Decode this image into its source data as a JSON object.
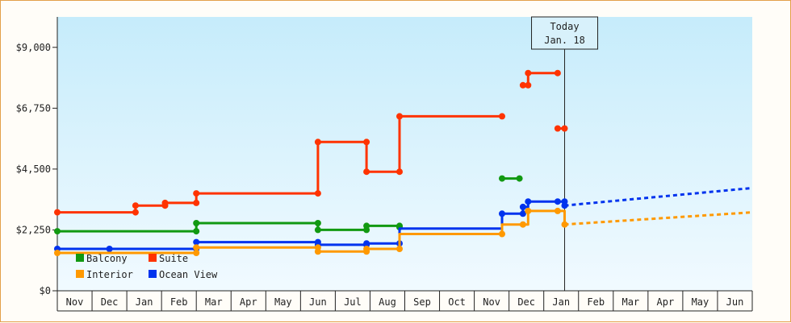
{
  "chart_data": {
    "type": "line",
    "step": true,
    "currency": "$",
    "yticks": [
      0,
      2250,
      4500,
      6750,
      9000
    ],
    "ytick_labels": [
      "$0",
      "$2,250",
      "$4,500",
      "$6,750",
      "$9,000"
    ],
    "ylim": [
      0,
      10125
    ],
    "months": [
      "Nov",
      "Dec",
      "Jan",
      "Feb",
      "Mar",
      "Apr",
      "May",
      "Jun",
      "Jul",
      "Aug",
      "Sep",
      "Oct",
      "Nov",
      "Dec",
      "Jan",
      "Feb",
      "Mar",
      "Apr",
      "May",
      "Jun"
    ],
    "today_label_line1": "Today",
    "today_label_line2": "Jan. 18",
    "today_x": 14.6,
    "grid": false,
    "legend_position": "bottom-left",
    "series": [
      {
        "name": "Suite",
        "color": "#ff3300",
        "segments": [
          [
            [
              0,
              2900
            ],
            [
              2.25,
              2900
            ],
            [
              2.25,
              3150
            ],
            [
              3.1,
              3150
            ],
            [
              3.1,
              3250
            ],
            [
              4.0,
              3250
            ],
            [
              4.0,
              3600
            ],
            [
              7.5,
              3600
            ],
            [
              7.5,
              5500
            ],
            [
              8.9,
              5500
            ],
            [
              8.9,
              4400
            ],
            [
              9.85,
              4400
            ],
            [
              9.85,
              6450
            ],
            [
              12.8,
              6450
            ]
          ],
          [
            [
              13.4,
              7600
            ],
            [
              13.55,
              7600
            ],
            [
              13.55,
              8050
            ],
            [
              14.4,
              8050
            ]
          ],
          [
            [
              14.4,
              6000
            ],
            [
              14.6,
              6000
            ]
          ]
        ],
        "markers": [
          [
            0,
            2900
          ],
          [
            2.25,
            2900
          ],
          [
            2.25,
            3150
          ],
          [
            3.1,
            3150
          ],
          [
            3.1,
            3250
          ],
          [
            4.0,
            3250
          ],
          [
            4.0,
            3600
          ],
          [
            7.5,
            3600
          ],
          [
            7.5,
            5500
          ],
          [
            8.9,
            5500
          ],
          [
            8.9,
            4400
          ],
          [
            9.85,
            4400
          ],
          [
            9.85,
            6450
          ],
          [
            12.8,
            6450
          ],
          [
            13.4,
            7600
          ],
          [
            13.55,
            7600
          ],
          [
            13.55,
            8050
          ],
          [
            14.4,
            8050
          ],
          [
            14.4,
            6000
          ],
          [
            14.6,
            6000
          ]
        ]
      },
      {
        "name": "Balcony",
        "color": "#119911",
        "segments": [
          [
            [
              0,
              2200
            ],
            [
              4.0,
              2200
            ],
            [
              4.0,
              2500
            ],
            [
              7.5,
              2500
            ],
            [
              7.5,
              2250
            ],
            [
              8.9,
              2250
            ],
            [
              8.9,
              2400
            ],
            [
              9.85,
              2400
            ],
            [
              9.85,
              2350
            ]
          ],
          [
            [
              12.8,
              4150
            ],
            [
              13.3,
              4150
            ]
          ]
        ],
        "markers": [
          [
            0,
            2200
          ],
          [
            4.0,
            2200
          ],
          [
            4.0,
            2500
          ],
          [
            7.5,
            2500
          ],
          [
            7.5,
            2250
          ],
          [
            8.9,
            2250
          ],
          [
            8.9,
            2400
          ],
          [
            9.85,
            2400
          ],
          [
            9.85,
            2350
          ],
          [
            12.8,
            4150
          ],
          [
            13.3,
            4150
          ]
        ]
      },
      {
        "name": "Ocean View",
        "color": "#0033ee",
        "segments": [
          [
            [
              0,
              1550
            ],
            [
              4.0,
              1550
            ],
            [
              4.0,
              1800
            ],
            [
              7.5,
              1800
            ],
            [
              7.5,
              1700
            ],
            [
              8.9,
              1700
            ],
            [
              8.9,
              1750
            ],
            [
              9.85,
              1750
            ],
            [
              9.85,
              2300
            ],
            [
              12.8,
              2300
            ],
            [
              12.8,
              2850
            ],
            [
              13.4,
              2850
            ],
            [
              13.4,
              3100
            ],
            [
              13.55,
              3100
            ],
            [
              13.55,
              3300
            ],
            [
              14.4,
              3300
            ],
            [
              14.6,
              3300
            ],
            [
              14.6,
              3150
            ]
          ]
        ],
        "markers": [
          [
            0,
            1550
          ],
          [
            1.5,
            1550
          ],
          [
            4.0,
            1550
          ],
          [
            4.0,
            1800
          ],
          [
            7.5,
            1800
          ],
          [
            7.5,
            1700
          ],
          [
            8.9,
            1700
          ],
          [
            8.9,
            1750
          ],
          [
            9.85,
            1750
          ],
          [
            12.8,
            2850
          ],
          [
            13.4,
            2850
          ],
          [
            13.4,
            3100
          ],
          [
            13.55,
            3300
          ],
          [
            14.4,
            3300
          ],
          [
            14.6,
            3300
          ],
          [
            14.6,
            3150
          ]
        ],
        "forecast": [
          [
            14.6,
            3150
          ],
          [
            20,
            3800
          ]
        ]
      },
      {
        "name": "Interior",
        "color": "#ff9900",
        "segments": [
          [
            [
              0,
              1400
            ],
            [
              4.0,
              1400
            ],
            [
              4.0,
              1600
            ],
            [
              7.5,
              1600
            ],
            [
              7.5,
              1450
            ],
            [
              8.9,
              1450
            ],
            [
              8.9,
              1550
            ],
            [
              9.85,
              1550
            ],
            [
              9.85,
              2100
            ],
            [
              12.8,
              2100
            ],
            [
              12.8,
              2450
            ],
            [
              13.4,
              2450
            ],
            [
              13.55,
              2450
            ],
            [
              13.55,
              2950
            ],
            [
              14.4,
              2950
            ],
            [
              14.6,
              2950
            ],
            [
              14.6,
              2450
            ]
          ]
        ],
        "markers": [
          [
            0,
            1400
          ],
          [
            4.0,
            1400
          ],
          [
            4.0,
            1600
          ],
          [
            7.5,
            1600
          ],
          [
            7.5,
            1450
          ],
          [
            8.9,
            1450
          ],
          [
            8.9,
            1550
          ],
          [
            9.85,
            1550
          ],
          [
            12.8,
            2100
          ],
          [
            13.4,
            2450
          ],
          [
            13.55,
            2950
          ],
          [
            14.4,
            2950
          ],
          [
            14.6,
            2450
          ]
        ],
        "forecast": [
          [
            14.6,
            2450
          ],
          [
            20,
            2900
          ]
        ]
      }
    ],
    "legend": [
      {
        "name": "Balcony",
        "color": "#119911"
      },
      {
        "name": "Suite",
        "color": "#ff3300"
      },
      {
        "name": "Interior",
        "color": "#ff9900"
      },
      {
        "name": "Ocean View",
        "color": "#0033ee"
      }
    ]
  }
}
